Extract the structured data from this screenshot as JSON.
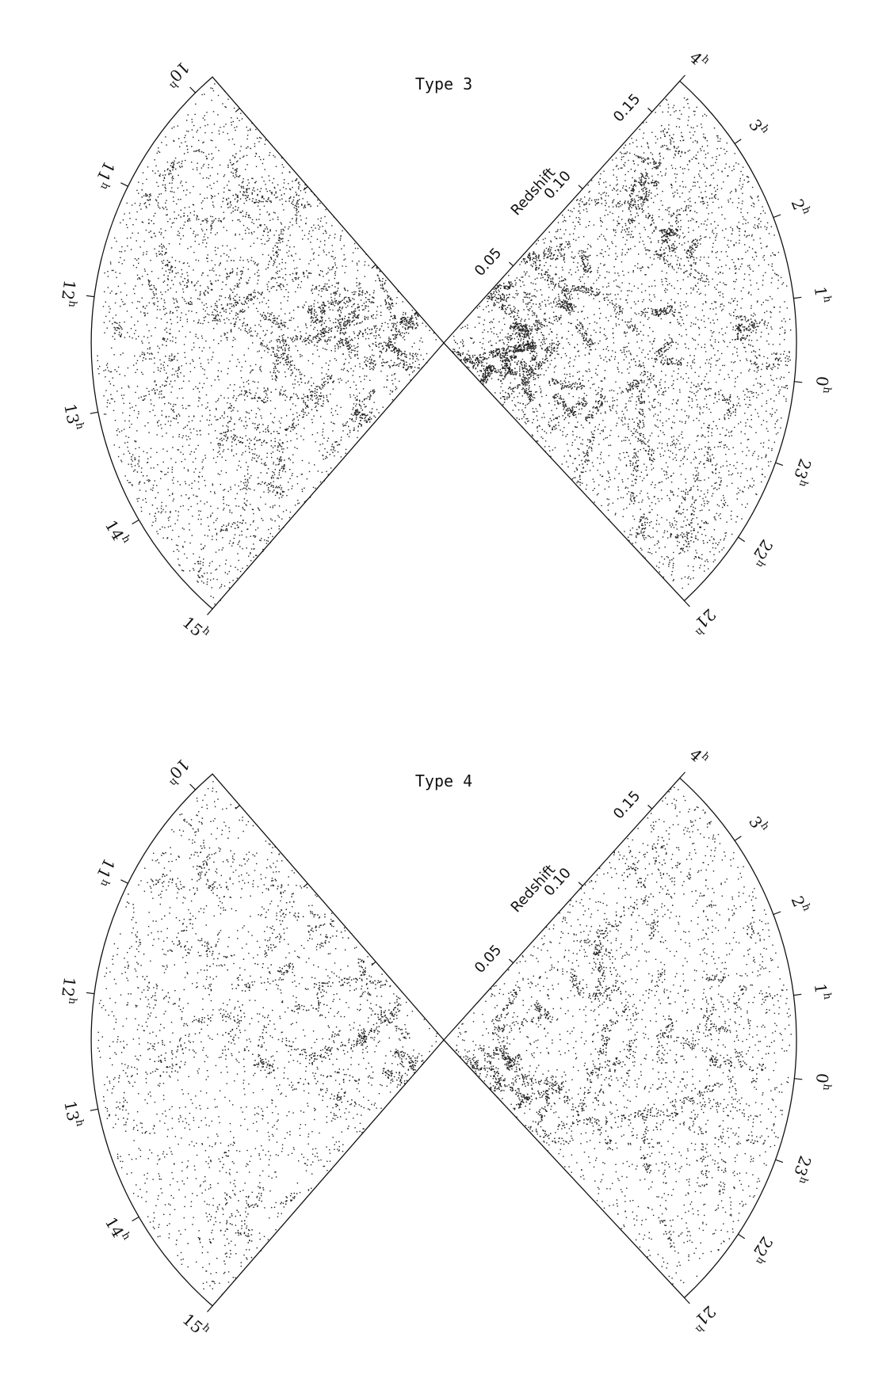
{
  "chart_data": [
    {
      "type": "scatter",
      "title": "Type 3",
      "radial_axis_label": "Redshift",
      "radial_ticks": [
        "0.05",
        "0.10",
        "0.15"
      ],
      "radial_tick_values": [
        0.05,
        0.1,
        0.15
      ],
      "zlim": [
        0,
        0.17
      ],
      "left_wedge": {
        "ra_range_hours": [
          9.8,
          15.0
        ],
        "ra_ticks": [
          {
            "hour": 10,
            "label": "10",
            "sup": "h"
          },
          {
            "hour": 11,
            "label": "11",
            "sup": "h"
          },
          {
            "hour": 12,
            "label": "12",
            "sup": "h"
          },
          {
            "hour": 13,
            "label": "13",
            "sup": "h"
          },
          {
            "hour": 14,
            "label": "14",
            "sup": "h"
          },
          {
            "hour": 15,
            "label": "15",
            "sup": "h"
          }
        ]
      },
      "right_wedge": {
        "ra_range_hours": [
          -3.0,
          4.0
        ],
        "ra_ticks": [
          {
            "hour": 4,
            "label": "4",
            "sup": "h"
          },
          {
            "hour": 3,
            "label": "3",
            "sup": "h"
          },
          {
            "hour": 2,
            "label": "2",
            "sup": "h"
          },
          {
            "hour": 1,
            "label": "1",
            "sup": "h"
          },
          {
            "hour": 0,
            "label": "0",
            "sup": "h"
          },
          {
            "hour": -1,
            "label": "23",
            "sup": "h"
          },
          {
            "hour": -2,
            "label": "22",
            "sup": "h"
          },
          {
            "hour": -3,
            "label": "21",
            "sup": "h"
          }
        ]
      },
      "density": "high"
    },
    {
      "type": "scatter",
      "title": "Type 4",
      "radial_axis_label": "Redshift",
      "radial_ticks": [
        "0.05",
        "0.10",
        "0.15"
      ],
      "radial_tick_values": [
        0.05,
        0.1,
        0.15
      ],
      "zlim": [
        0,
        0.17
      ],
      "left_wedge": {
        "ra_range_hours": [
          9.8,
          15.0
        ],
        "ra_ticks": [
          {
            "hour": 10,
            "label": "10",
            "sup": "h"
          },
          {
            "hour": 11,
            "label": "11",
            "sup": "h"
          },
          {
            "hour": 12,
            "label": "12",
            "sup": "h"
          },
          {
            "hour": 13,
            "label": "13",
            "sup": "h"
          },
          {
            "hour": 14,
            "label": "14",
            "sup": "h"
          },
          {
            "hour": 15,
            "label": "15",
            "sup": "h"
          }
        ]
      },
      "right_wedge": {
        "ra_range_hours": [
          -3.0,
          4.0
        ],
        "ra_ticks": [
          {
            "hour": 4,
            "label": "4",
            "sup": "h"
          },
          {
            "hour": 3,
            "label": "3",
            "sup": "h"
          },
          {
            "hour": 2,
            "label": "2",
            "sup": "h"
          },
          {
            "hour": 1,
            "label": "1",
            "sup": "h"
          },
          {
            "hour": 0,
            "label": "0",
            "sup": "h"
          },
          {
            "hour": -1,
            "label": "23",
            "sup": "h"
          },
          {
            "hour": -2,
            "label": "22",
            "sup": "h"
          },
          {
            "hour": -3,
            "label": "21",
            "sup": "h"
          }
        ]
      },
      "density": "medium"
    }
  ]
}
